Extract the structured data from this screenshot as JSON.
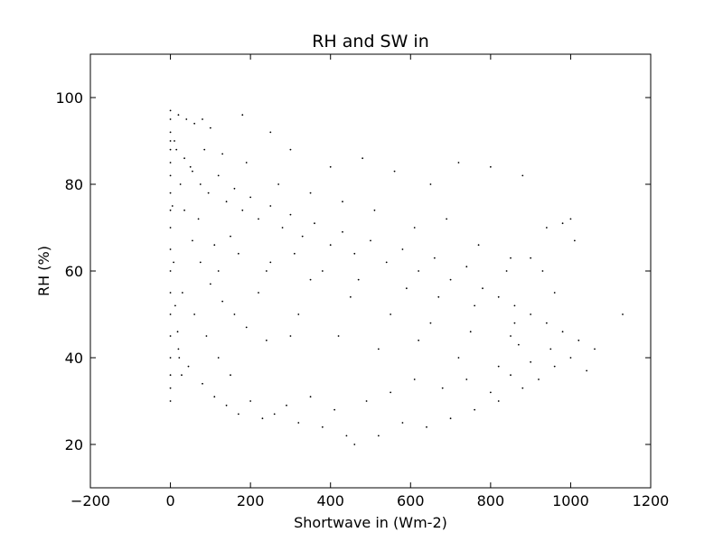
{
  "chart_data": {
    "type": "scatter",
    "title": "RH and SW in",
    "xlabel": "Shortwave in (Wm-2)",
    "ylabel": "RH (%)",
    "xlim": [
      -200,
      1200
    ],
    "ylim": [
      10,
      110
    ],
    "xticks": [
      -200,
      0,
      200,
      400,
      600,
      800,
      1000,
      1200
    ],
    "yticks": [
      20,
      40,
      60,
      80,
      100
    ],
    "xtick_labels": [
      "−200",
      "0",
      "200",
      "400",
      "600",
      "800",
      "1000",
      "1200"
    ],
    "ytick_labels": [
      "20",
      "40",
      "60",
      "80",
      "100"
    ],
    "grid": false,
    "marker_color": "#000000",
    "points": [
      [
        0,
        97
      ],
      [
        0,
        95
      ],
      [
        0,
        92
      ],
      [
        0,
        90
      ],
      [
        0,
        88
      ],
      [
        0,
        85
      ],
      [
        0,
        82
      ],
      [
        0,
        78
      ],
      [
        0,
        74
      ],
      [
        0,
        70
      ],
      [
        0,
        65
      ],
      [
        0,
        60
      ],
      [
        0,
        55
      ],
      [
        0,
        50
      ],
      [
        0,
        45
      ],
      [
        0,
        40
      ],
      [
        0,
        36
      ],
      [
        0,
        33
      ],
      [
        0,
        30
      ],
      [
        20,
        96
      ],
      [
        40,
        95
      ],
      [
        60,
        94
      ],
      [
        80,
        95
      ],
      [
        100,
        93
      ],
      [
        15,
        88
      ],
      [
        35,
        86
      ],
      [
        55,
        83
      ],
      [
        75,
        80
      ],
      [
        95,
        78
      ],
      [
        120,
        82
      ],
      [
        140,
        76
      ],
      [
        160,
        79
      ],
      [
        180,
        74
      ],
      [
        200,
        77
      ],
      [
        220,
        72
      ],
      [
        250,
        75
      ],
      [
        280,
        70
      ],
      [
        300,
        73
      ],
      [
        330,
        68
      ],
      [
        360,
        71
      ],
      [
        400,
        66
      ],
      [
        430,
        69
      ],
      [
        460,
        64
      ],
      [
        500,
        67
      ],
      [
        540,
        62
      ],
      [
        580,
        65
      ],
      [
        620,
        60
      ],
      [
        660,
        63
      ],
      [
        700,
        58
      ],
      [
        740,
        61
      ],
      [
        780,
        56
      ],
      [
        820,
        54
      ],
      [
        860,
        52
      ],
      [
        900,
        50
      ],
      [
        940,
        48
      ],
      [
        980,
        46
      ],
      [
        1020,
        44
      ],
      [
        1060,
        42
      ],
      [
        1130,
        50
      ],
      [
        1000,
        72
      ],
      [
        980,
        71
      ],
      [
        940,
        70
      ],
      [
        880,
        82
      ],
      [
        800,
        84
      ],
      [
        720,
        85
      ],
      [
        650,
        80
      ],
      [
        560,
        83
      ],
      [
        480,
        86
      ],
      [
        400,
        84
      ],
      [
        300,
        88
      ],
      [
        250,
        92
      ],
      [
        180,
        96
      ],
      [
        30,
        55
      ],
      [
        60,
        50
      ],
      [
        90,
        45
      ],
      [
        120,
        40
      ],
      [
        150,
        36
      ],
      [
        200,
        30
      ],
      [
        260,
        27
      ],
      [
        320,
        25
      ],
      [
        380,
        24
      ],
      [
        440,
        22
      ],
      [
        460,
        20
      ],
      [
        520,
        22
      ],
      [
        580,
        25
      ],
      [
        640,
        24
      ],
      [
        700,
        26
      ],
      [
        760,
        28
      ],
      [
        820,
        30
      ],
      [
        880,
        33
      ],
      [
        920,
        35
      ],
      [
        960,
        38
      ],
      [
        1000,
        40
      ],
      [
        1040,
        37
      ],
      [
        120,
        60
      ],
      [
        220,
        55
      ],
      [
        320,
        50
      ],
      [
        420,
        45
      ],
      [
        520,
        42
      ],
      [
        620,
        44
      ],
      [
        720,
        40
      ],
      [
        820,
        38
      ],
      [
        150,
        68
      ],
      [
        250,
        62
      ],
      [
        350,
        58
      ],
      [
        450,
        54
      ],
      [
        550,
        50
      ],
      [
        650,
        48
      ],
      [
        750,
        46
      ],
      [
        850,
        45
      ],
      [
        70,
        72
      ],
      [
        110,
        66
      ],
      [
        170,
        64
      ],
      [
        240,
        60
      ],
      [
        310,
        64
      ],
      [
        380,
        60
      ],
      [
        470,
        58
      ],
      [
        590,
        56
      ],
      [
        670,
        54
      ],
      [
        760,
        52
      ],
      [
        840,
        60
      ],
      [
        900,
        63
      ],
      [
        960,
        55
      ],
      [
        1010,
        67
      ],
      [
        930,
        60
      ],
      [
        870,
        43
      ],
      [
        50,
        84
      ],
      [
        85,
        88
      ],
      [
        130,
        87
      ],
      [
        190,
        85
      ],
      [
        270,
        80
      ],
      [
        350,
        78
      ],
      [
        430,
        76
      ],
      [
        510,
        74
      ],
      [
        610,
        70
      ],
      [
        690,
        72
      ],
      [
        770,
        66
      ],
      [
        850,
        63
      ],
      [
        20,
        42
      ],
      [
        45,
        38
      ],
      [
        80,
        34
      ],
      [
        110,
        31
      ],
      [
        140,
        29
      ],
      [
        170,
        27
      ],
      [
        230,
        26
      ],
      [
        290,
        29
      ],
      [
        350,
        31
      ],
      [
        410,
        28
      ],
      [
        490,
        30
      ],
      [
        550,
        32
      ],
      [
        610,
        35
      ],
      [
        680,
        33
      ],
      [
        740,
        35
      ],
      [
        800,
        32
      ],
      [
        850,
        36
      ],
      [
        900,
        39
      ],
      [
        950,
        42
      ],
      [
        860,
        48
      ],
      [
        300,
        45
      ],
      [
        240,
        44
      ],
      [
        190,
        47
      ],
      [
        160,
        50
      ],
      [
        130,
        53
      ],
      [
        100,
        57
      ],
      [
        75,
        62
      ],
      [
        55,
        67
      ],
      [
        35,
        74
      ],
      [
        25,
        80
      ],
      [
        10,
        90
      ],
      [
        5,
        75
      ],
      [
        8,
        62
      ],
      [
        12,
        52
      ],
      [
        18,
        46
      ],
      [
        22,
        40
      ],
      [
        28,
        36
      ]
    ]
  }
}
